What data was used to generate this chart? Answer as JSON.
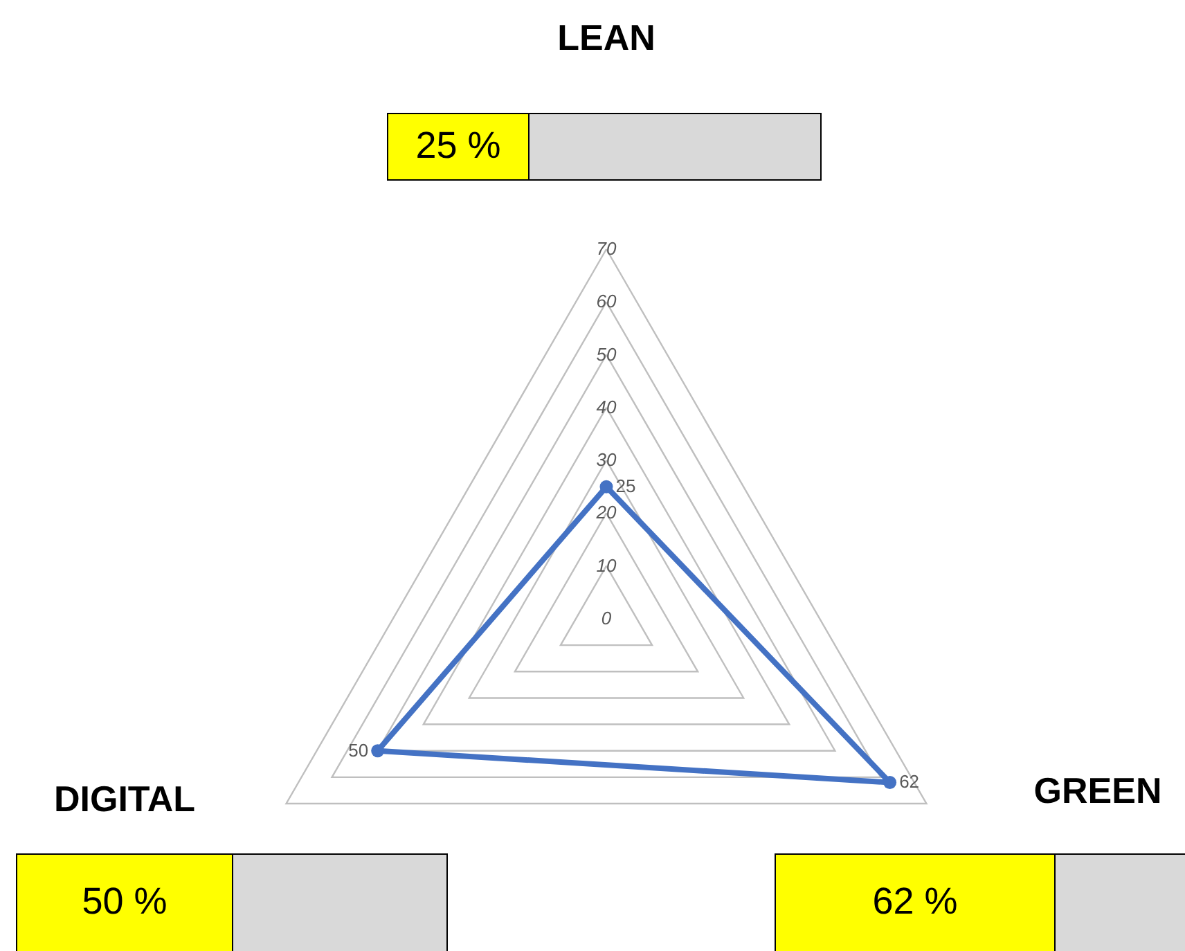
{
  "chart_data": {
    "type": "radar",
    "categories": [
      "LEAN",
      "GREEN",
      "DIGITAL"
    ],
    "series": [
      {
        "color": "#4472c4",
        "values": [
          25,
          62,
          50
        ]
      }
    ],
    "ylim": [
      0,
      70
    ],
    "yticks": [
      0,
      10,
      20,
      30,
      40,
      50,
      60,
      70
    ],
    "grid": true,
    "marker": "circle",
    "data_labels": true,
    "annotations": [
      "25 %",
      "62 %",
      "50 %"
    ]
  }
}
